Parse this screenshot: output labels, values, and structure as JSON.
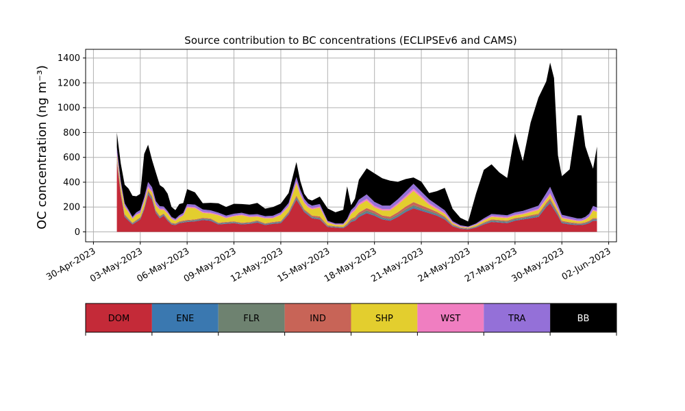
{
  "chart_data": {
    "type": "area",
    "stacked": true,
    "title": "Source contribution to BC concentrations (ECLIPSEv6 and CAMS)",
    "xlabel": "",
    "ylabel": "OC concentration (ng m⁻³)",
    "ylim": [
      -80,
      1470
    ],
    "yticks": [
      0,
      200,
      400,
      600,
      800,
      1000,
      1200,
      1400
    ],
    "xlim": [
      "2023-04-29T12:00",
      "2023-06-02T12:00"
    ],
    "xticks": [
      "2023-04-30",
      "2023-05-03",
      "2023-05-06",
      "2023-05-09",
      "2023-05-12",
      "2023-05-15",
      "2023-05-18",
      "2023-05-21",
      "2023-05-24",
      "2023-05-27",
      "2023-05-30",
      "2023-06-02"
    ],
    "xtick_labels": [
      "30-Apr-2023",
      "03-May-2023",
      "06-May-2023",
      "09-May-2023",
      "12-May-2023",
      "15-May-2023",
      "18-May-2023",
      "21-May-2023",
      "24-May-2023",
      "27-May-2023",
      "30-May-2023",
      "02-Jun-2023"
    ],
    "grid": true,
    "legend": "below",
    "x": [
      "2023-05-01T12:00",
      "2023-05-01T18:00",
      "2023-05-02T00:00",
      "2023-05-02T06:00",
      "2023-05-02T12:00",
      "2023-05-02T18:00",
      "2023-05-03T00:00",
      "2023-05-03T06:00",
      "2023-05-03T12:00",
      "2023-05-03T18:00",
      "2023-05-04T00:00",
      "2023-05-04T06:00",
      "2023-05-04T12:00",
      "2023-05-04T18:00",
      "2023-05-05T00:00",
      "2023-05-05T06:00",
      "2023-05-05T12:00",
      "2023-05-05T18:00",
      "2023-05-06T00:00",
      "2023-05-06T12:00",
      "2023-05-07T00:00",
      "2023-05-07T12:00",
      "2023-05-08T00:00",
      "2023-05-08T12:00",
      "2023-05-09T00:00",
      "2023-05-09T12:00",
      "2023-05-10T00:00",
      "2023-05-10T12:00",
      "2023-05-11T00:00",
      "2023-05-11T12:00",
      "2023-05-12T00:00",
      "2023-05-12T12:00",
      "2023-05-13T00:00",
      "2023-05-13T06:00",
      "2023-05-13T12:00",
      "2023-05-13T18:00",
      "2023-05-14T00:00",
      "2023-05-14T12:00",
      "2023-05-15T00:00",
      "2023-05-15T12:00",
      "2023-05-16T00:00",
      "2023-05-16T06:00",
      "2023-05-16T12:00",
      "2023-05-16T18:00",
      "2023-05-17T00:00",
      "2023-05-17T12:00",
      "2023-05-18T00:00",
      "2023-05-18T12:00",
      "2023-05-19T00:00",
      "2023-05-19T12:00",
      "2023-05-20T00:00",
      "2023-05-20T12:00",
      "2023-05-21T00:00",
      "2023-05-21T12:00",
      "2023-05-22T00:00",
      "2023-05-22T12:00",
      "2023-05-23T00:00",
      "2023-05-23T12:00",
      "2023-05-24T00:00",
      "2023-05-24T12:00",
      "2023-05-25T00:00",
      "2023-05-25T12:00",
      "2023-05-26T00:00",
      "2023-05-26T12:00",
      "2023-05-27T00:00",
      "2023-05-27T12:00",
      "2023-05-28T00:00",
      "2023-05-28T12:00",
      "2023-05-29T00:00",
      "2023-05-29T06:00",
      "2023-05-29T12:00",
      "2023-05-29T18:00",
      "2023-05-30T00:00",
      "2023-05-30T12:00",
      "2023-05-31T00:00",
      "2023-05-31T06:00",
      "2023-05-31T12:00",
      "2023-05-31T18:00",
      "2023-06-01T00:00",
      "2023-06-01T06:00"
    ],
    "series": [
      {
        "name": "DOM",
        "color": "#c42a38",
        "values": [
          560,
          300,
          120,
          90,
          60,
          80,
          100,
          180,
          300,
          260,
          150,
          110,
          130,
          90,
          60,
          55,
          70,
          75,
          80,
          85,
          95,
          90,
          60,
          65,
          70,
          60,
          65,
          75,
          55,
          65,
          70,
          140,
          260,
          210,
          160,
          135,
          110,
          100,
          40,
          35,
          30,
          50,
          80,
          90,
          120,
          150,
          130,
          100,
          90,
          120,
          160,
          190,
          170,
          150,
          130,
          100,
          45,
          25,
          20,
          35,
          60,
          80,
          75,
          70,
          90,
          100,
          110,
          120,
          200,
          230,
          180,
          130,
          70,
          60,
          55,
          55,
          60,
          70,
          90,
          90
        ]
      },
      {
        "name": "ENE",
        "color": "#3a78b0",
        "values": [
          10,
          8,
          6,
          5,
          4,
          4,
          5,
          6,
          8,
          8,
          6,
          5,
          5,
          4,
          4,
          3,
          4,
          4,
          4,
          4,
          5,
          5,
          4,
          4,
          4,
          4,
          4,
          5,
          4,
          4,
          5,
          6,
          8,
          7,
          6,
          6,
          5,
          5,
          3,
          3,
          3,
          4,
          5,
          6,
          7,
          8,
          7,
          6,
          6,
          7,
          8,
          9,
          8,
          8,
          7,
          6,
          4,
          3,
          3,
          3,
          4,
          5,
          5,
          5,
          5,
          5,
          6,
          6,
          8,
          9,
          8,
          7,
          5,
          5,
          4,
          4,
          5,
          5,
          5,
          5
        ]
      },
      {
        "name": "FLR",
        "color": "#6e8270",
        "values": [
          15,
          10,
          8,
          6,
          5,
          6,
          7,
          8,
          12,
          10,
          8,
          7,
          7,
          6,
          5,
          5,
          5,
          6,
          6,
          6,
          7,
          7,
          5,
          6,
          6,
          5,
          5,
          6,
          5,
          6,
          6,
          8,
          12,
          10,
          8,
          8,
          7,
          7,
          5,
          4,
          4,
          6,
          8,
          10,
          12,
          14,
          12,
          10,
          10,
          12,
          14,
          16,
          14,
          12,
          10,
          8,
          5,
          4,
          3,
          4,
          6,
          8,
          8,
          8,
          8,
          8,
          9,
          10,
          12,
          14,
          12,
          10,
          7,
          6,
          6,
          6,
          6,
          7,
          8,
          8
        ]
      },
      {
        "name": "IND",
        "color": "#c86457",
        "values": [
          15,
          12,
          8,
          6,
          5,
          6,
          6,
          8,
          12,
          10,
          8,
          7,
          6,
          6,
          5,
          5,
          5,
          6,
          6,
          6,
          6,
          6,
          5,
          5,
          5,
          5,
          5,
          6,
          5,
          5,
          6,
          8,
          12,
          10,
          8,
          8,
          10,
          12,
          6,
          4,
          4,
          8,
          12,
          14,
          16,
          20,
          18,
          16,
          16,
          20,
          22,
          25,
          22,
          18,
          14,
          10,
          6,
          4,
          3,
          4,
          6,
          8,
          8,
          8,
          8,
          8,
          9,
          10,
          14,
          16,
          12,
          10,
          8,
          7,
          6,
          6,
          6,
          7,
          8,
          8
        ]
      },
      {
        "name": "SHP",
        "color": "#e3ce2e",
        "values": [
          20,
          40,
          60,
          50,
          30,
          40,
          30,
          40,
          20,
          30,
          40,
          50,
          30,
          40,
          30,
          20,
          30,
          40,
          100,
          90,
          40,
          40,
          60,
          30,
          40,
          60,
          40,
          30,
          40,
          30,
          50,
          40,
          100,
          60,
          50,
          40,
          50,
          70,
          20,
          10,
          15,
          20,
          40,
          50,
          60,
          60,
          30,
          40,
          50,
          60,
          70,
          90,
          60,
          30,
          20,
          20,
          10,
          5,
          5,
          10,
          15,
          20,
          20,
          20,
          20,
          20,
          25,
          30,
          25,
          30,
          25,
          20,
          20,
          20,
          15,
          15,
          20,
          30,
          60,
          50
        ]
      },
      {
        "name": "WST",
        "color": "#f07ec1",
        "values": [
          20,
          10,
          8,
          6,
          5,
          6,
          8,
          10,
          15,
          12,
          10,
          8,
          8,
          6,
          5,
          5,
          6,
          6,
          8,
          8,
          8,
          8,
          6,
          6,
          6,
          6,
          6,
          6,
          5,
          6,
          6,
          10,
          15,
          12,
          10,
          10,
          10,
          10,
          5,
          4,
          4,
          6,
          10,
          12,
          14,
          15,
          14,
          12,
          12,
          14,
          16,
          18,
          16,
          14,
          12,
          10,
          6,
          4,
          3,
          4,
          6,
          8,
          8,
          8,
          8,
          8,
          9,
          10,
          12,
          14,
          12,
          10,
          8,
          7,
          6,
          6,
          6,
          7,
          8,
          8
        ]
      },
      {
        "name": "TRA",
        "color": "#9470d8",
        "values": [
          40,
          30,
          20,
          15,
          12,
          15,
          20,
          25,
          35,
          30,
          25,
          20,
          18,
          15,
          12,
          12,
          14,
          15,
          20,
          20,
          20,
          18,
          15,
          15,
          15,
          14,
          14,
          15,
          13,
          14,
          15,
          20,
          35,
          30,
          25,
          22,
          20,
          20,
          10,
          8,
          8,
          12,
          20,
          25,
          30,
          35,
          30,
          28,
          28,
          30,
          35,
          40,
          35,
          30,
          25,
          20,
          10,
          8,
          6,
          8,
          12,
          15,
          15,
          15,
          18,
          20,
          22,
          25,
          40,
          50,
          40,
          30,
          20,
          18,
          16,
          16,
          18,
          20,
          30,
          28
        ]
      },
      {
        "name": "BB",
        "color": "#000000",
        "values": [
          120,
          140,
          150,
          170,
          170,
          130,
          130,
          350,
          300,
          220,
          230,
          170,
          150,
          140,
          80,
          70,
          90,
          80,
          120,
          100,
          50,
          60,
          75,
          70,
          80,
          70,
          80,
          90,
          60,
          70,
          70,
          80,
          120,
          70,
          40,
          35,
          40,
          60,
          100,
          90,
          110,
          260,
          40,
          60,
          160,
          210,
          230,
          220,
          200,
          140,
          100,
          50,
          80,
          50,
          110,
          180,
          100,
          60,
          40,
          240,
          390,
          400,
          340,
          300,
          640,
          400,
          690,
          870,
          900,
          1000,
          950,
          400,
          310,
          380,
          830,
          830,
          570,
          450,
          300,
          490
        ]
      }
    ]
  },
  "legend": {
    "items": [
      {
        "name": "DOM",
        "color": "#c42a38",
        "text_color": "#000000"
      },
      {
        "name": "ENE",
        "color": "#3a78b0",
        "text_color": "#000000"
      },
      {
        "name": "FLR",
        "color": "#6e8270",
        "text_color": "#000000"
      },
      {
        "name": "IND",
        "color": "#c86457",
        "text_color": "#000000"
      },
      {
        "name": "SHP",
        "color": "#e3ce2e",
        "text_color": "#000000"
      },
      {
        "name": "WST",
        "color": "#f07ec1",
        "text_color": "#000000"
      },
      {
        "name": "TRA",
        "color": "#9470d8",
        "text_color": "#000000"
      },
      {
        "name": "BB",
        "color": "#000000",
        "text_color": "#ffffff"
      }
    ]
  }
}
